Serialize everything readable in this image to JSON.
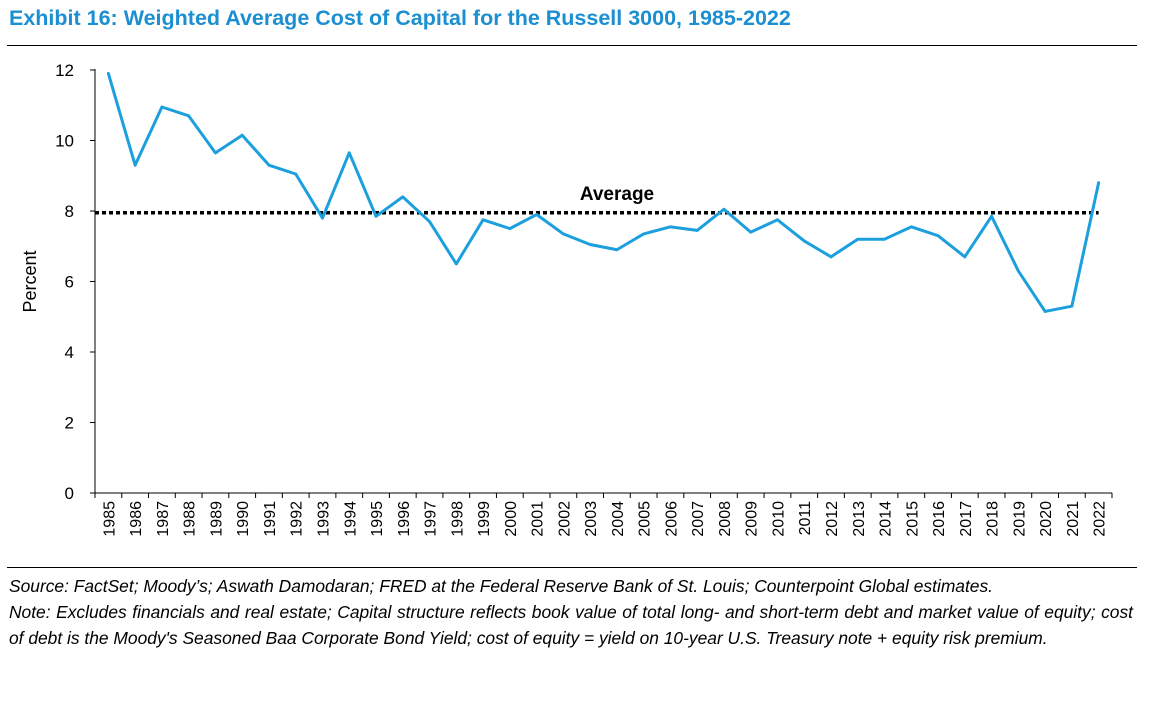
{
  "title": "Exhibit 16: Weighted Average Cost of Capital for the Russell 3000, 1985-2022",
  "source_note": "Source: FactSet; Moody’s; Aswath Damodaran; FRED at the Federal Reserve Bank of St. Louis; Counterpoint Global estimates.",
  "method_note": "Note: Excludes financials and real estate; Capital structure reflects book value of total long- and short-term debt and market value of equity; cost of debt is the Moody's Seasoned Baa Corporate Bond Yield; cost of equity = yield on 10-year U.S. Treasury note + equity risk premium.",
  "colors": {
    "title": "#1b8fd2",
    "series": "#1ca0dd",
    "average": "#000000"
  },
  "chart_data": {
    "type": "line",
    "title": "",
    "xlabel": "",
    "ylabel": "Percent",
    "ylim": [
      0,
      12
    ],
    "yticks": [
      0,
      2,
      4,
      6,
      8,
      10,
      12
    ],
    "grid": false,
    "x": [
      "1985",
      "1986",
      "1987",
      "1988",
      "1989",
      "1990",
      "1991",
      "1992",
      "1993",
      "1994",
      "1995",
      "1996",
      "1997",
      "1998",
      "1999",
      "2000",
      "2001",
      "2002",
      "2003",
      "2004",
      "2005",
      "2006",
      "2007",
      "2008",
      "2009",
      "2010",
      "2011",
      "2012",
      "2013",
      "2014",
      "2015",
      "2016",
      "2017",
      "2018",
      "2019",
      "2020",
      "2021",
      "2022"
    ],
    "series": [
      {
        "values": [
          11.9,
          9.3,
          10.95,
          10.7,
          9.65,
          10.15,
          9.3,
          9.05,
          7.8,
          9.65,
          7.85,
          8.4,
          7.7,
          6.5,
          7.75,
          7.5,
          7.9,
          7.35,
          7.05,
          6.9,
          7.35,
          7.55,
          7.45,
          8.05,
          7.4,
          7.75,
          7.15,
          6.7,
          7.2,
          7.2,
          7.55,
          7.3,
          6.7,
          7.85,
          6.3,
          5.15,
          5.3,
          8.8
        ]
      }
    ],
    "average": {
      "label": "Average",
      "value": 7.95
    }
  }
}
